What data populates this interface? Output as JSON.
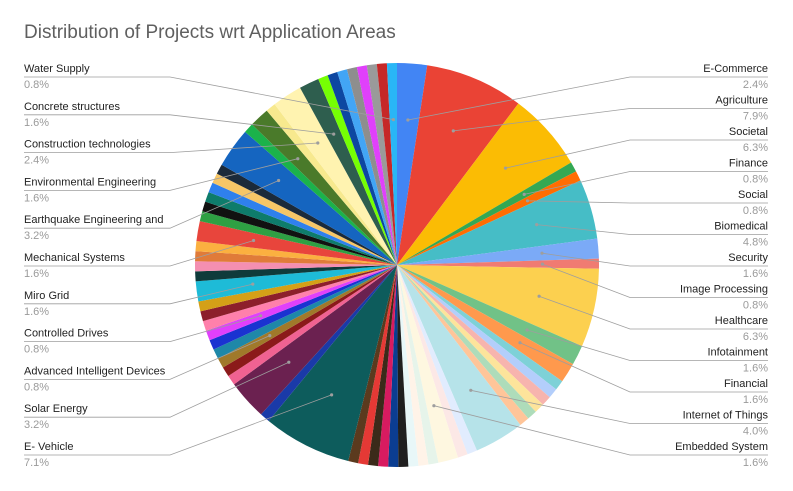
{
  "chart_data": {
    "type": "pie",
    "title": "Distribution of Projects wrt Application Areas",
    "legend": "none",
    "slices": [
      {
        "label": "E-Commerce",
        "value": 2.4,
        "pct": "2.4%",
        "color": "#4285f4",
        "show": true
      },
      {
        "label": "Agriculture",
        "value": 7.9,
        "pct": "7.9%",
        "color": "#ea4335",
        "show": true
      },
      {
        "label": "Societal",
        "value": 6.3,
        "pct": "6.3%",
        "color": "#fbbc04",
        "show": true
      },
      {
        "label": "Finance",
        "value": 0.8,
        "pct": "0.8%",
        "color": "#34a853",
        "show": true
      },
      {
        "label": "Social",
        "value": 0.8,
        "pct": "0.8%",
        "color": "#ff6d01",
        "show": true
      },
      {
        "label": "Biomedical",
        "value": 4.8,
        "pct": "4.8%",
        "color": "#46bdc6",
        "show": true
      },
      {
        "label": "Security",
        "value": 1.6,
        "pct": "1.6%",
        "color": "#7baaf7",
        "show": true
      },
      {
        "label": "Image Processing",
        "value": 0.8,
        "pct": "0.8%",
        "color": "#f07b72",
        "show": true
      },
      {
        "label": "Healthcare",
        "value": 6.3,
        "pct": "6.3%",
        "color": "#fcd04f",
        "show": true
      },
      {
        "label": "Infotainment",
        "value": 1.6,
        "pct": "1.6%",
        "color": "#71c287",
        "show": true
      },
      {
        "label": "Financial",
        "value": 1.6,
        "pct": "1.6%",
        "color": "#ff994d",
        "show": true
      },
      {
        "label": "",
        "value": 0.8,
        "pct": "",
        "color": "#7ed1d7",
        "show": false
      },
      {
        "label": "",
        "value": 0.8,
        "pct": "",
        "color": "#b3cefb",
        "show": false
      },
      {
        "label": "",
        "value": 0.8,
        "pct": "",
        "color": "#f7b4ae",
        "show": false
      },
      {
        "label": "",
        "value": 0.8,
        "pct": "",
        "color": "#fde49b",
        "show": false
      },
      {
        "label": "",
        "value": 0.8,
        "pct": "",
        "color": "#aedcba",
        "show": false
      },
      {
        "label": "",
        "value": 0.8,
        "pct": "",
        "color": "#ffc599",
        "show": false
      },
      {
        "label": "Internet of Things",
        "value": 4.0,
        "pct": "4.0%",
        "color": "#b6e3e9",
        "show": true
      },
      {
        "label": "",
        "value": 0.8,
        "pct": "",
        "color": "#e1ecfe",
        "show": false
      },
      {
        "label": "",
        "value": 0.8,
        "pct": "",
        "color": "#fce8e6",
        "show": false
      },
      {
        "label": "Embedded System",
        "value": 1.6,
        "pct": "1.6%",
        "color": "#fef7e0",
        "show": true
      },
      {
        "label": "",
        "value": 0.8,
        "pct": "",
        "color": "#e6f4ea",
        "show": false
      },
      {
        "label": "",
        "value": 0.8,
        "pct": "",
        "color": "#fff3e8",
        "show": false
      },
      {
        "label": "",
        "value": 0.8,
        "pct": "",
        "color": "#e8f7f8",
        "show": false
      },
      {
        "label": "",
        "value": 0.8,
        "pct": "",
        "color": "#1f1f1f",
        "show": false
      },
      {
        "label": "",
        "value": 0.8,
        "pct": "",
        "color": "#0b3d91",
        "show": false
      },
      {
        "label": "",
        "value": 0.8,
        "pct": "",
        "color": "#d81b60",
        "show": false
      },
      {
        "label": "",
        "value": 0.8,
        "pct": "",
        "color": "#3b2a1a",
        "show": false
      },
      {
        "label": "",
        "value": 0.8,
        "pct": "",
        "color": "#e53935",
        "show": false
      },
      {
        "label": "",
        "value": 0.8,
        "pct": "",
        "color": "#5b3a1e",
        "show": false
      },
      {
        "label": "E- Vehicle",
        "value": 7.1,
        "pct": "7.1%",
        "color": "#0d5c5c",
        "show": true
      },
      {
        "label": "",
        "value": 0.8,
        "pct": "",
        "color": "#1a3aa8",
        "show": false
      },
      {
        "label": "Solar Energy",
        "value": 3.2,
        "pct": "3.2%",
        "color": "#6b2150",
        "show": true
      },
      {
        "label": "",
        "value": 0.8,
        "pct": "",
        "color": "#f06292",
        "show": false
      },
      {
        "label": "",
        "value": 0.8,
        "pct": "",
        "color": "#8b1a1a",
        "show": false
      },
      {
        "label": "Advanced Intelligent Devices",
        "value": 0.8,
        "pct": "0.8%",
        "color": "#a0792a",
        "show": true
      },
      {
        "label": "",
        "value": 0.8,
        "pct": "",
        "color": "#1e88a8",
        "show": false
      },
      {
        "label": "",
        "value": 0.8,
        "pct": "",
        "color": "#1a33d1",
        "show": false
      },
      {
        "label": "Controlled Drives",
        "value": 0.8,
        "pct": "0.8%",
        "color": "#e040fb",
        "show": true
      },
      {
        "label": "",
        "value": 0.8,
        "pct": "",
        "color": "#ff80ab",
        "show": false
      },
      {
        "label": "",
        "value": 0.8,
        "pct": "",
        "color": "#8d1f2b",
        "show": false
      },
      {
        "label": "",
        "value": 0.8,
        "pct": "",
        "color": "#d4a017",
        "show": false
      },
      {
        "label": "Miro Grid",
        "value": 1.6,
        "pct": "1.6%",
        "color": "#1ebbd7",
        "show": true
      },
      {
        "label": "",
        "value": 0.8,
        "pct": "",
        "color": "#0f3b3b",
        "show": false
      },
      {
        "label": "",
        "value": 0.8,
        "pct": "",
        "color": "#f48fb1",
        "show": false
      },
      {
        "label": "",
        "value": 0.8,
        "pct": "",
        "color": "#e07b39",
        "show": false
      },
      {
        "label": "",
        "value": 0.8,
        "pct": "",
        "color": "#fbb040",
        "show": false
      },
      {
        "label": "Mechanical Systems",
        "value": 1.6,
        "pct": "1.6%",
        "color": "#e8453c",
        "show": true
      },
      {
        "label": "",
        "value": 0.8,
        "pct": "",
        "color": "#2ea043",
        "show": false
      },
      {
        "label": "",
        "value": 0.8,
        "pct": "",
        "color": "#111111",
        "show": false
      },
      {
        "label": "",
        "value": 0.8,
        "pct": "",
        "color": "#0e7c6b",
        "show": false
      },
      {
        "label": "",
        "value": 0.8,
        "pct": "",
        "color": "#2f80ed",
        "show": false
      },
      {
        "label": "",
        "value": 0.8,
        "pct": "",
        "color": "#f6c667",
        "show": false
      },
      {
        "label": "",
        "value": 0.8,
        "pct": "",
        "color": "#1b2a3a",
        "show": false
      },
      {
        "label": "Earthquake Engineering and",
        "value": 3.2,
        "pct": "3.2%",
        "color": "#1565c0",
        "show": true
      },
      {
        "label": "",
        "value": 0.8,
        "pct": "",
        "color": "#1bb24b",
        "show": false
      },
      {
        "label": "Environmental Engineering",
        "value": 1.6,
        "pct": "1.6%",
        "color": "#4a7a2a",
        "show": true
      },
      {
        "label": "",
        "value": 0.8,
        "pct": "",
        "color": "#f7e98e",
        "show": false
      },
      {
        "label": "Construction technologies",
        "value": 2.4,
        "pct": "2.4%",
        "color": "#fff3b0",
        "show": true
      },
      {
        "label": "Concrete structures",
        "value": 1.6,
        "pct": "1.6%",
        "color": "#2e5e4e",
        "show": true
      },
      {
        "label": "",
        "value": 0.8,
        "pct": "",
        "color": "#76ff03",
        "show": false
      },
      {
        "label": "",
        "value": 0.8,
        "pct": "",
        "color": "#0d47a1",
        "show": false
      },
      {
        "label": "",
        "value": 0.8,
        "pct": "",
        "color": "#42a5f5",
        "show": false
      },
      {
        "label": "",
        "value": 0.8,
        "pct": "",
        "color": "#8e8e8e",
        "show": false
      },
      {
        "label": "",
        "value": 0.8,
        "pct": "",
        "color": "#e040fb",
        "show": false
      },
      {
        "label": "",
        "value": 0.8,
        "pct": "",
        "color": "#9a9a9a",
        "show": false
      },
      {
        "label": "",
        "value": 0.8,
        "pct": "",
        "color": "#c62828",
        "show": false
      },
      {
        "label": "Water Supply",
        "value": 0.8,
        "pct": "0.8%",
        "color": "#29b6f6",
        "show": true
      }
    ]
  }
}
